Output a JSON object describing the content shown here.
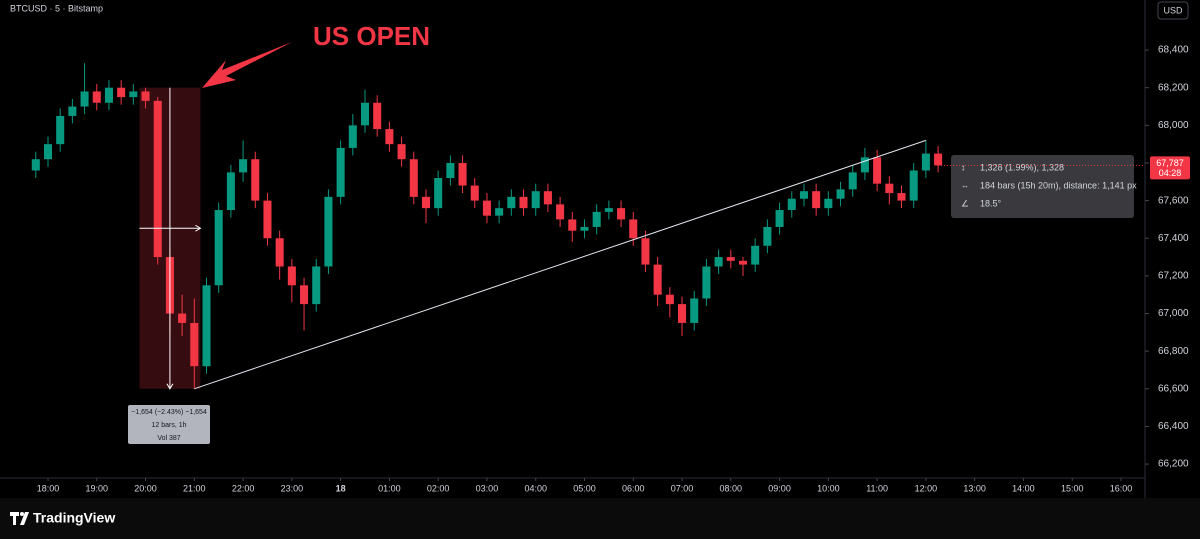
{
  "chart_data": {
    "type": "candlestick",
    "title": "BTCUSD · 5 · Bitstamp",
    "currency": "USD",
    "x": [
      17.75,
      18,
      18.25,
      18.5,
      18.75,
      19,
      19.25,
      19.5,
      19.75,
      20,
      20.25,
      20.5,
      20.75,
      21,
      21.25,
      21.5,
      21.75,
      22,
      22.25,
      22.5,
      22.75,
      23,
      23.25,
      23.5,
      23.75,
      24,
      24.25,
      24.5,
      24.75,
      25,
      25.25,
      25.5,
      25.75,
      26,
      26.25,
      26.5,
      26.75,
      27,
      27.25,
      27.5,
      27.75,
      28,
      28.25,
      28.5,
      28.75,
      29,
      29.25,
      29.5,
      29.75,
      30,
      30.25,
      30.5,
      30.75,
      31,
      31.25,
      31.5,
      31.75,
      32,
      32.25,
      32.5,
      32.75,
      33,
      33.25,
      33.5,
      33.75,
      34,
      34.25,
      34.5,
      34.75,
      35,
      35.25,
      35.5,
      35.75,
      36,
      36.25
    ],
    "open": [
      67760,
      67820,
      67900,
      68050,
      68100,
      68180,
      68120,
      68200,
      68150,
      68180,
      68130,
      67300,
      67000,
      66950,
      66720,
      67150,
      67550,
      67750,
      67820,
      67600,
      67400,
      67250,
      67150,
      67050,
      67250,
      67620,
      67880,
      68000,
      68120,
      67980,
      67900,
      67820,
      67620,
      67560,
      67720,
      67800,
      67680,
      67600,
      67520,
      67560,
      67620,
      67560,
      67650,
      67580,
      67500,
      67440,
      67460,
      67540,
      67560,
      67500,
      67400,
      67260,
      67100,
      67050,
      66950,
      67080,
      67250,
      67300,
      67280,
      67260,
      67360,
      67460,
      67550,
      67610,
      67650,
      67560,
      67610,
      67660,
      67750,
      67830,
      67690,
      67640,
      67600,
      67760,
      67850
    ],
    "high": [
      67860,
      67940,
      68090,
      68140,
      68330,
      68220,
      68240,
      68240,
      68220,
      68200,
      68150,
      67340,
      67100,
      67080,
      67190,
      67590,
      67790,
      67920,
      67860,
      67640,
      67440,
      67290,
      67190,
      67290,
      67660,
      67920,
      68060,
      68190,
      68160,
      68020,
      67940,
      67860,
      67660,
      67760,
      67840,
      67840,
      67720,
      67640,
      67600,
      67660,
      67660,
      67690,
      67690,
      67620,
      67540,
      67500,
      67580,
      67600,
      67600,
      67540,
      67440,
      67300,
      67140,
      67090,
      67120,
      67290,
      67340,
      67340,
      67300,
      67400,
      67500,
      67590,
      67650,
      67690,
      67690,
      67650,
      67700,
      67790,
      67880,
      67870,
      67730,
      67680,
      67800,
      67920,
      67890
    ],
    "low": [
      67720,
      67780,
      67860,
      68010,
      68060,
      68080,
      68080,
      68110,
      68110,
      68090,
      67260,
      66900,
      66880,
      66600,
      66680,
      67110,
      67510,
      67700,
      67560,
      67360,
      67180,
      67060,
      66910,
      67010,
      67210,
      67580,
      67840,
      67960,
      67940,
      67860,
      67780,
      67580,
      67480,
      67520,
      67680,
      67640,
      67560,
      67480,
      67480,
      67520,
      67520,
      67520,
      67540,
      67460,
      67380,
      67400,
      67420,
      67500,
      67460,
      67360,
      67220,
      67040,
      66980,
      66880,
      66910,
      67040,
      67210,
      67240,
      67200,
      67220,
      67320,
      67420,
      67510,
      67570,
      67520,
      67520,
      67570,
      67620,
      67710,
      67650,
      67580,
      67560,
      67560,
      67720,
      67750
    ],
    "close": [
      67820,
      67900,
      68050,
      68100,
      68180,
      68120,
      68200,
      68150,
      68180,
      68130,
      67300,
      67000,
      66950,
      66720,
      67150,
      67550,
      67750,
      67820,
      67600,
      67400,
      67250,
      67150,
      67050,
      67250,
      67620,
      67880,
      68000,
      68120,
      67980,
      67900,
      67820,
      67620,
      67560,
      67720,
      67800,
      67680,
      67600,
      67520,
      67560,
      67620,
      67560,
      67650,
      67580,
      67500,
      67440,
      67460,
      67540,
      67560,
      67500,
      67400,
      67260,
      67100,
      67050,
      66950,
      67080,
      67250,
      67300,
      67280,
      67260,
      67360,
      67460,
      67550,
      67610,
      67650,
      67560,
      67610,
      67660,
      67750,
      67830,
      67690,
      67640,
      67600,
      67760,
      67850,
      67787
    ],
    "up_color": "#089981",
    "down_color": "#f23645",
    "xlim": [
      17.18,
      40.39
    ],
    "ylim": [
      66126,
      68666
    ],
    "xticks": [
      {
        "value": 18,
        "label": "18:00"
      },
      {
        "value": 19,
        "label": "19:00"
      },
      {
        "value": 20,
        "label": "20:00"
      },
      {
        "value": 21,
        "label": "21:00"
      },
      {
        "value": 22,
        "label": "22:00"
      },
      {
        "value": 23,
        "label": "23:00"
      },
      {
        "value": 24,
        "label": "18"
      },
      {
        "value": 25,
        "label": "01:00"
      },
      {
        "value": 26,
        "label": "02:00"
      },
      {
        "value": 27,
        "label": "03:00"
      },
      {
        "value": 28,
        "label": "04:00"
      },
      {
        "value": 29,
        "label": "05:00"
      },
      {
        "value": 30,
        "label": "06:00"
      },
      {
        "value": 31,
        "label": "07:00"
      },
      {
        "value": 32,
        "label": "08:00"
      },
      {
        "value": 33,
        "label": "09:00"
      },
      {
        "value": 34,
        "label": "10:00"
      },
      {
        "value": 35,
        "label": "11:00"
      },
      {
        "value": 36,
        "label": "12:00"
      },
      {
        "value": 37,
        "label": "13:00"
      },
      {
        "value": 38,
        "label": "14:00"
      },
      {
        "value": 39,
        "label": "15:00"
      },
      {
        "value": 40,
        "label": "16:00"
      }
    ],
    "yticks": [
      {
        "value": 66200,
        "label": "66,200"
      },
      {
        "value": 66400,
        "label": "66,400"
      },
      {
        "value": 66600,
        "label": "66,600"
      },
      {
        "value": 66800,
        "label": "66,800"
      },
      {
        "value": 67000,
        "label": "67,000"
      },
      {
        "value": 67200,
        "label": "67,200"
      },
      {
        "value": 67400,
        "label": "67,400"
      },
      {
        "value": 67600,
        "label": "67,600"
      },
      {
        "value": 67800,
        "label": "67,800"
      },
      {
        "value": 68000,
        "label": "68,000"
      },
      {
        "value": 68200,
        "label": "68,200"
      },
      {
        "value": 68400,
        "label": "68,400"
      }
    ],
    "last_price": {
      "value": 67787,
      "label": "67,787"
    },
    "countdown": "04:28",
    "annotations": {
      "headline": "US OPEN",
      "range_measure": [
        "−1,654 (−2.43%) −1,654",
        "12 bars, 1h",
        "Vol 387"
      ],
      "trend_measure": [
        "1,328 (1.99%), 1,328",
        "184 bars (15h 20m), distance: 1,141 px",
        "18.5°"
      ]
    }
  },
  "brand": "TradingView"
}
